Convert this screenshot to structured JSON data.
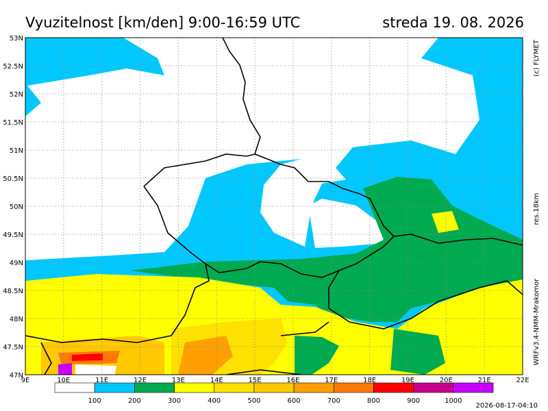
{
  "title": "Vyuzitelnost [km/den] 9:00-16:59 UTC",
  "date": "streda 19. 08. 2026",
  "copyright": "(c) FLYMET",
  "resolution": "res.18km",
  "model": "WRFv3.4-NMM-Mrakomor",
  "timestamp": "2026-08-17-04:10",
  "lat_labels": [
    "53N",
    "52.5N",
    "52N",
    "51.5N",
    "51N",
    "50.5N",
    "50N",
    "49.5N",
    "49N",
    "48.5N",
    "48N",
    "47.5N",
    "47N"
  ],
  "lon_labels": [
    "9E",
    "10E",
    "11E",
    "12E",
    "13E",
    "14E",
    "15E",
    "16E",
    "17E",
    "18E",
    "19E",
    "20E",
    "21E",
    "22E"
  ],
  "legend": {
    "labels": [
      "100",
      "200",
      "300",
      "400",
      "500",
      "600",
      "700",
      "800",
      "900",
      "1000"
    ],
    "colors": [
      "#ffffff",
      "#00c8ff",
      "#00aa50",
      "#ffff00",
      "#ffe100",
      "#ffc800",
      "#ffa000",
      "#ff7800",
      "#ff0000",
      "#c8008c",
      "#c800ff"
    ]
  }
}
